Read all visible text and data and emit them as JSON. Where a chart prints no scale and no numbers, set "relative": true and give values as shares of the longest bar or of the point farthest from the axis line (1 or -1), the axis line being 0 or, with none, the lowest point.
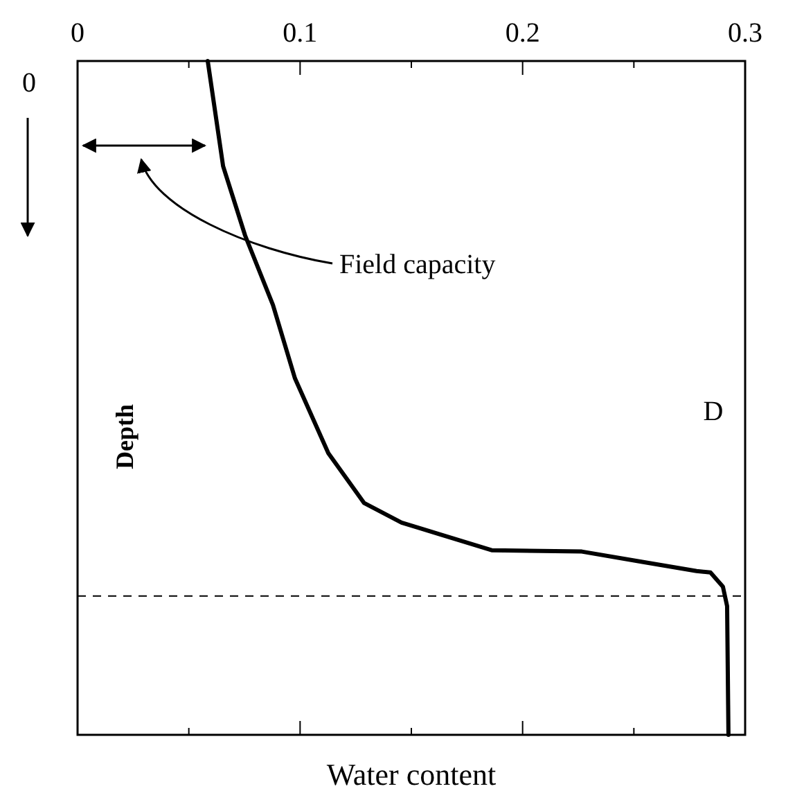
{
  "chart_data": {
    "type": "line",
    "relative": true,
    "xlabel": "Water content",
    "ylabel": "Depth",
    "xlim": [
      0,
      0.3
    ],
    "xticks": [
      0,
      {
        "value": 0.05,
        "label": null
      },
      0.1,
      {
        "value": 0.15,
        "label": null
      },
      0.2,
      {
        "value": 0.25,
        "label": null
      },
      0.3
    ],
    "annotations": [
      "0",
      "Field capacity",
      "D"
    ],
    "ref_lines": [
      {
        "axis": "y",
        "value": -0.794,
        "line_style": "dashed",
        "color": "#000000"
      }
    ],
    "line_style": "solid",
    "marker": "none",
    "grid": false,
    "series": [
      {
        "color": "#000000",
        "x": [
          0.0585,
          0.0654,
          0.0753,
          0.0878,
          0.0977,
          0.1127,
          0.1288,
          0.1456,
          0.1624,
          0.1861,
          0.2266,
          0.2533,
          0.2782,
          0.2844,
          0.29,
          0.2919,
          0.2925
        ],
        "values": [
          0,
          -0.156,
          -0.259,
          -0.362,
          -0.471,
          -0.582,
          -0.656,
          -0.685,
          -0.702,
          -0.726,
          -0.728,
          -0.743,
          -0.757,
          -0.759,
          -0.78,
          -0.809,
          -1
        ]
      }
    ]
  }
}
